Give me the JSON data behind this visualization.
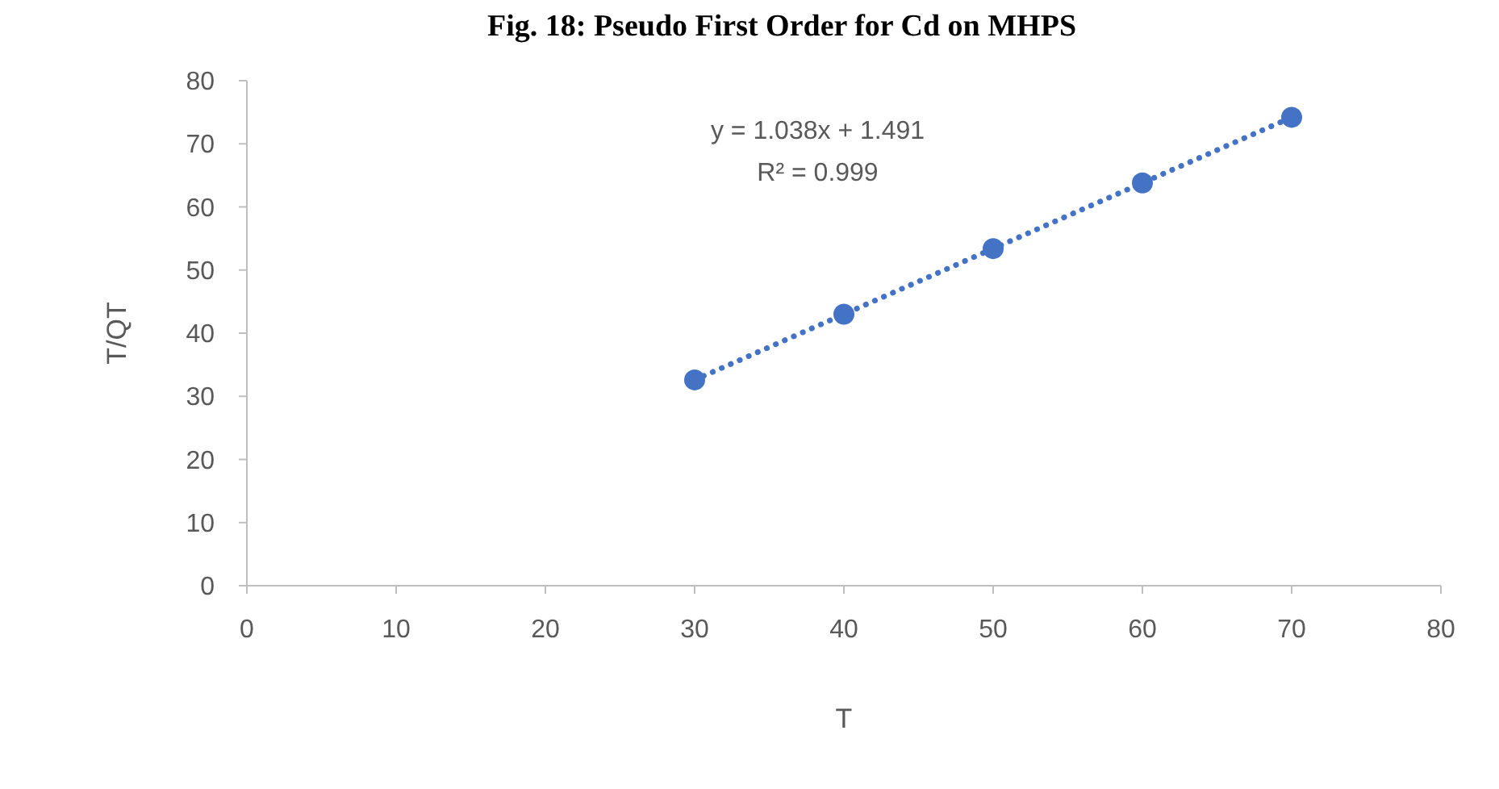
{
  "chart_data": {
    "type": "scatter",
    "title": "Fig. 18: Pseudo First Order for Cd on MHPS",
    "xlabel": "T",
    "ylabel": "T/QT",
    "x": [
      30,
      40,
      50,
      60,
      70
    ],
    "series": [
      {
        "color": "#4472c4",
        "values": [
          32.6,
          43.0,
          53.4,
          63.8,
          74.2
        ],
        "marker": "circle"
      },
      {
        "type": "line",
        "color": "#4472c4",
        "x": [
          30,
          70
        ],
        "values": [
          32.6,
          74.2
        ],
        "line_style": "dotted",
        "marker": "none"
      }
    ],
    "xlim": [
      0,
      80
    ],
    "xticks": [
      0,
      10,
      20,
      30,
      40,
      50,
      60,
      70,
      80
    ],
    "ylim": [
      0,
      80
    ],
    "yticks": [
      0,
      10,
      20,
      30,
      40,
      50,
      60,
      70,
      80
    ],
    "grid": false,
    "annotations": [
      "y = 1.038x + 1.491",
      "R² = 0.999"
    ]
  }
}
